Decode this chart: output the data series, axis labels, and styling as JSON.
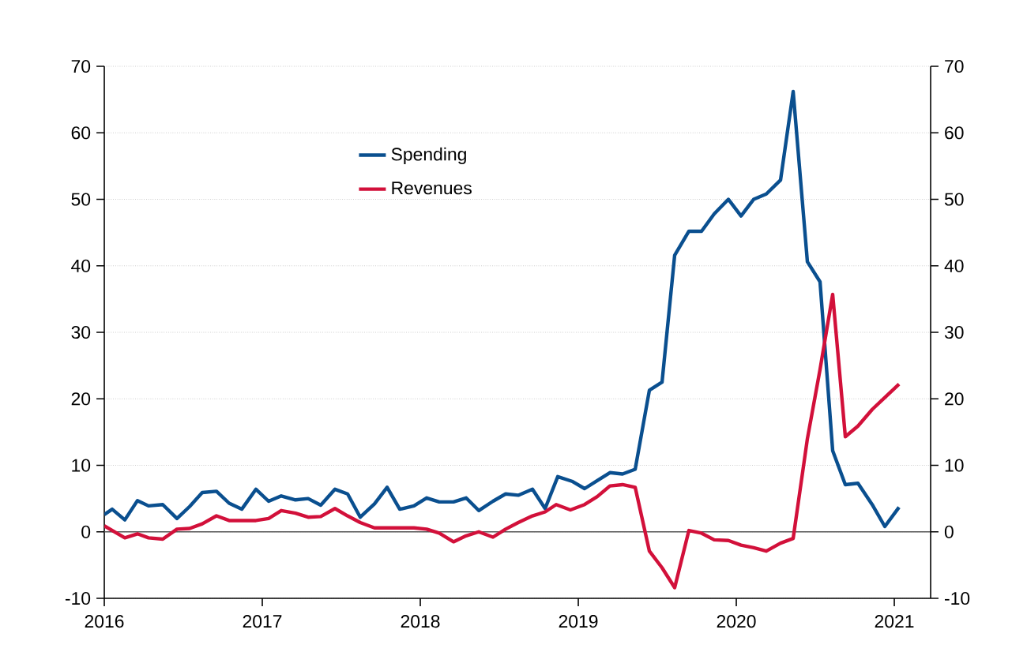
{
  "chart_data": {
    "type": "line",
    "xlim": [
      2016,
      2021.23
    ],
    "xticks": [
      2016,
      2017,
      2018,
      2019,
      2020,
      2021
    ],
    "ylim": [
      -10,
      70
    ],
    "yticks": [
      -10,
      0,
      10,
      20,
      30,
      40,
      50,
      60,
      70
    ],
    "y2lim": [
      -10,
      70
    ],
    "y2ticks": [
      -10,
      0,
      10,
      20,
      30,
      40,
      50,
      60,
      70
    ],
    "grid": "y",
    "legend": "top",
    "marker": "none",
    "line_style": "solid",
    "ref_lines": [
      {
        "axis": "y",
        "value": 0,
        "color": "#555555"
      }
    ],
    "series": [
      {
        "name": "Spending",
        "color": "#0a4f8f",
        "x": [
          2016.0,
          2016.05,
          2016.13,
          2016.21,
          2016.28,
          2016.37,
          2016.46,
          2016.54,
          2016.62,
          2016.71,
          2016.79,
          2016.87,
          2016.96,
          2017.04,
          2017.12,
          2017.21,
          2017.29,
          2017.37,
          2017.46,
          2017.54,
          2017.62,
          2017.71,
          2017.79,
          2017.87,
          2017.96,
          2018.04,
          2018.12,
          2018.21,
          2018.29,
          2018.37,
          2018.46,
          2018.54,
          2018.62,
          2018.71,
          2018.79,
          2018.87,
          2018.96,
          2019.04,
          2019.12,
          2019.2,
          2019.28,
          2019.36,
          2019.45,
          2019.53,
          2019.61,
          2019.7,
          2019.78,
          2019.86,
          2019.95,
          2020.03,
          2020.11,
          2020.19,
          2020.28,
          2020.36,
          2020.45,
          2020.53,
          2020.61,
          2020.69,
          2020.77,
          2020.86,
          2020.94,
          2021.03
        ],
        "values": [
          2.6,
          3.4,
          1.8,
          4.7,
          3.9,
          4.1,
          2.0,
          3.8,
          5.9,
          6.1,
          4.3,
          3.4,
          6.4,
          4.6,
          5.4,
          4.8,
          5.0,
          4.0,
          6.4,
          5.7,
          2.2,
          4.2,
          6.7,
          3.4,
          3.9,
          5.1,
          4.5,
          4.5,
          5.1,
          3.2,
          4.6,
          5.7,
          5.5,
          6.4,
          3.5,
          8.3,
          7.6,
          6.5,
          7.7,
          8.9,
          8.7,
          9.4,
          21.3,
          22.5,
          41.6,
          45.2,
          45.2,
          47.8,
          50.0,
          47.5,
          50.0,
          50.8,
          52.9,
          66.2,
          40.6,
          37.6,
          12.2,
          7.1,
          7.3,
          4.1,
          0.8,
          3.7
        ]
      },
      {
        "name": "Revenues",
        "color": "#d2103a",
        "x": [
          2016.0,
          2016.13,
          2016.21,
          2016.28,
          2016.37,
          2016.46,
          2016.54,
          2016.62,
          2016.71,
          2016.79,
          2016.87,
          2016.96,
          2017.04,
          2017.12,
          2017.21,
          2017.29,
          2017.37,
          2017.46,
          2017.54,
          2017.62,
          2017.71,
          2017.79,
          2017.87,
          2017.96,
          2018.04,
          2018.12,
          2018.21,
          2018.29,
          2018.37,
          2018.46,
          2018.54,
          2018.62,
          2018.71,
          2018.79,
          2018.86,
          2018.95,
          2019.04,
          2019.12,
          2019.2,
          2019.28,
          2019.36,
          2019.45,
          2019.53,
          2019.61,
          2019.7,
          2019.78,
          2019.86,
          2019.95,
          2020.03,
          2020.11,
          2020.19,
          2020.28,
          2020.36,
          2020.45,
          2020.53,
          2020.61,
          2020.69,
          2020.77,
          2020.86,
          2020.94,
          2021.03
        ],
        "values": [
          0.9,
          -0.9,
          -0.3,
          -0.9,
          -1.1,
          0.4,
          0.5,
          1.2,
          2.4,
          1.7,
          1.7,
          1.7,
          2.0,
          3.2,
          2.8,
          2.2,
          2.3,
          3.5,
          2.4,
          1.4,
          0.6,
          0.6,
          0.6,
          0.6,
          0.4,
          -0.2,
          -1.5,
          -0.6,
          0.0,
          -0.8,
          0.4,
          1.4,
          2.4,
          3.0,
          4.1,
          3.3,
          4.1,
          5.3,
          6.9,
          7.1,
          6.7,
          -2.9,
          -5.4,
          -8.4,
          0.2,
          -0.2,
          -1.2,
          -1.3,
          -2.0,
          -2.4,
          -2.9,
          -1.7,
          -1.0,
          14.0,
          24.4,
          35.7,
          14.3,
          15.9,
          18.4,
          20.2,
          22.2
        ]
      }
    ]
  }
}
